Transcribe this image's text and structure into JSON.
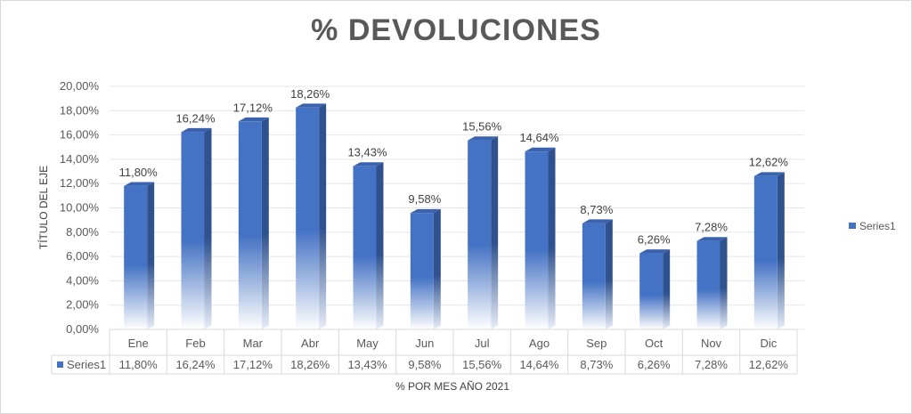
{
  "chart_data": {
    "type": "bar",
    "title": "% DEVOLUCIONES",
    "ylabel": "TÍTULO DEL EJE",
    "xlabel": "% POR MES AÑO 2021",
    "categories": [
      "Ene",
      "Feb",
      "Mar",
      "Abr",
      "May",
      "Jun",
      "Jul",
      "Ago",
      "Sep",
      "Oct",
      "Nov",
      "Dic"
    ],
    "series": [
      {
        "name": "Series1",
        "values": [
          11.8,
          16.24,
          17.12,
          18.26,
          13.43,
          9.58,
          15.56,
          14.64,
          8.73,
          6.26,
          7.28,
          12.62
        ],
        "labels": [
          "11,80%",
          "16,24%",
          "17,12%",
          "18,26%",
          "13,43%",
          "9,58%",
          "15,56%",
          "14,64%",
          "8,73%",
          "6,26%",
          "7,28%",
          "12,62%"
        ]
      }
    ],
    "ylim": [
      0,
      20
    ],
    "yticks": [
      "0,00%",
      "2,00%",
      "4,00%",
      "6,00%",
      "8,00%",
      "10,00%",
      "12,00%",
      "14,00%",
      "16,00%",
      "18,00%",
      "20,00%"
    ],
    "grid": true,
    "legend": "right",
    "data_table": true,
    "colors": {
      "bar": "#4472c4",
      "bar_dark": "#2f528f",
      "bar_top": "#3a62ad",
      "grid": "#e5e5e5"
    }
  }
}
